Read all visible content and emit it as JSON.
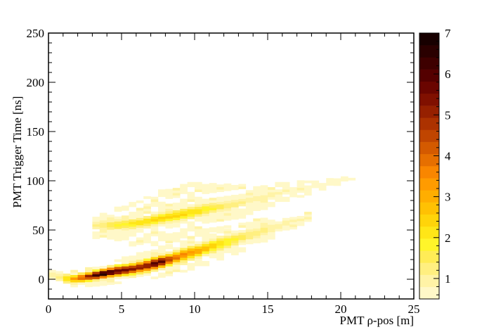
{
  "chart_data": {
    "type": "heatmap",
    "title": "",
    "xlabel": "PMT ρ-pos [m]",
    "ylabel": "PMT Trigger Time [ns]",
    "xlim": [
      0,
      25
    ],
    "ylim": [
      -20,
      250
    ],
    "x_ticks": [
      "0",
      "5",
      "10",
      "15",
      "20",
      "25"
    ],
    "y_ticks": [
      "0",
      "50",
      "100",
      "150",
      "200",
      "250"
    ],
    "colorbar": {
      "range": [
        0.5,
        7
      ],
      "ticks": [
        "1",
        "2",
        "3",
        "4",
        "5",
        "6",
        "7"
      ],
      "palette": [
        "#fff8c8",
        "#fff3a6",
        "#ffef80",
        "#ffec56",
        "#fff52a",
        "#ffe617",
        "#ffd40a",
        "#ffc103",
        "#ffae00",
        "#ff9b00",
        "#f98600",
        "#e66f00",
        "#d45a00",
        "#c04500",
        "#ac3200",
        "#962000",
        "#801000",
        "#6a0500",
        "#540000",
        "#3e0000",
        "#2a0000",
        "#170000"
      ],
      "grid": false
    },
    "bands": [
      {
        "name": "",
        "points": [
          {
            "x": 0.5,
            "y": 3,
            "spread": 3,
            "peak": 0.8,
            "halfwidth": 6
          },
          {
            "x": 1.5,
            "y": 0,
            "spread": 3,
            "peak": 3.0,
            "halfwidth": 8
          },
          {
            "x": 2.5,
            "y": 2,
            "spread": 3,
            "peak": 4.5,
            "halfwidth": 10
          },
          {
            "x": 3.5,
            "y": 5,
            "spread": 3,
            "peak": 7.0,
            "halfwidth": 12
          },
          {
            "x": 4.5,
            "y": 8,
            "spread": 3.5,
            "peak": 6.0,
            "halfwidth": 13
          },
          {
            "x": 5.5,
            "y": 10,
            "spread": 3.5,
            "peak": 5.5,
            "halfwidth": 14
          },
          {
            "x": 6.5,
            "y": 13,
            "spread": 4,
            "peak": 5.0,
            "halfwidth": 15
          },
          {
            "x": 7.5,
            "y": 17,
            "spread": 4,
            "peak": 6.5,
            "halfwidth": 16
          },
          {
            "x": 8.5,
            "y": 21,
            "spread": 4,
            "peak": 4.0,
            "halfwidth": 17
          },
          {
            "x": 9.5,
            "y": 26,
            "spread": 4.5,
            "peak": 3.5,
            "halfwidth": 18
          },
          {
            "x": 10.5,
            "y": 30,
            "spread": 4.5,
            "peak": 3.0,
            "halfwidth": 18
          },
          {
            "x": 11.5,
            "y": 35,
            "spread": 5,
            "peak": 2.4,
            "halfwidth": 17
          },
          {
            "x": 12.5,
            "y": 39,
            "spread": 5,
            "peak": 1.8,
            "halfwidth": 16
          },
          {
            "x": 13.5,
            "y": 44,
            "spread": 5,
            "peak": 1.4,
            "halfwidth": 15
          },
          {
            "x": 14.5,
            "y": 49,
            "spread": 5,
            "peak": 1.2,
            "halfwidth": 13
          },
          {
            "x": 15.5,
            "y": 53,
            "spread": 5,
            "peak": 1.0,
            "halfwidth": 11
          },
          {
            "x": 16.5,
            "y": 58,
            "spread": 4,
            "peak": 0.9,
            "halfwidth": 9
          },
          {
            "x": 17.5,
            "y": 62,
            "spread": 3,
            "peak": 0.8,
            "halfwidth": 6
          }
        ]
      },
      {
        "name": "",
        "points": [
          {
            "x": 3.5,
            "y": 55,
            "spread": 4,
            "peak": 1.2,
            "halfwidth": 14
          },
          {
            "x": 4.5,
            "y": 55,
            "spread": 4,
            "peak": 1.8,
            "halfwidth": 18
          },
          {
            "x": 5.5,
            "y": 56,
            "spread": 4,
            "peak": 2.0,
            "halfwidth": 22
          },
          {
            "x": 6.5,
            "y": 58,
            "spread": 4,
            "peak": 2.2,
            "halfwidth": 26
          },
          {
            "x": 7.5,
            "y": 61,
            "spread": 4,
            "peak": 2.4,
            "halfwidth": 30
          },
          {
            "x": 8.5,
            "y": 64,
            "spread": 4,
            "peak": 2.5,
            "halfwidth": 32
          },
          {
            "x": 9.5,
            "y": 67,
            "spread": 4.5,
            "peak": 2.3,
            "halfwidth": 32
          },
          {
            "x": 10.5,
            "y": 70,
            "spread": 4.5,
            "peak": 2.1,
            "halfwidth": 30
          },
          {
            "x": 11.5,
            "y": 73,
            "spread": 4.5,
            "peak": 1.6,
            "halfwidth": 26
          },
          {
            "x": 12.5,
            "y": 76,
            "spread": 4.5,
            "peak": 1.3,
            "halfwidth": 22
          },
          {
            "x": 13.5,
            "y": 79,
            "spread": 4,
            "peak": 1.1,
            "halfwidth": 18
          },
          {
            "x": 14.5,
            "y": 83,
            "spread": 4,
            "peak": 1.0,
            "halfwidth": 14
          },
          {
            "x": 15.5,
            "y": 87,
            "spread": 4,
            "peak": 0.9,
            "halfwidth": 12
          },
          {
            "x": 16.5,
            "y": 90,
            "spread": 3,
            "peak": 0.8,
            "halfwidth": 10
          },
          {
            "x": 17.5,
            "y": 92,
            "spread": 3,
            "peak": 0.8,
            "halfwidth": 8
          },
          {
            "x": 18.5,
            "y": 95,
            "spread": 3,
            "peak": 0.7,
            "halfwidth": 6
          },
          {
            "x": 19.5,
            "y": 98,
            "spread": 2,
            "peak": 0.7,
            "halfwidth": 4
          },
          {
            "x": 20.5,
            "y": 101,
            "spread": 2,
            "peak": 0.6,
            "halfwidth": 3
          }
        ]
      }
    ]
  }
}
